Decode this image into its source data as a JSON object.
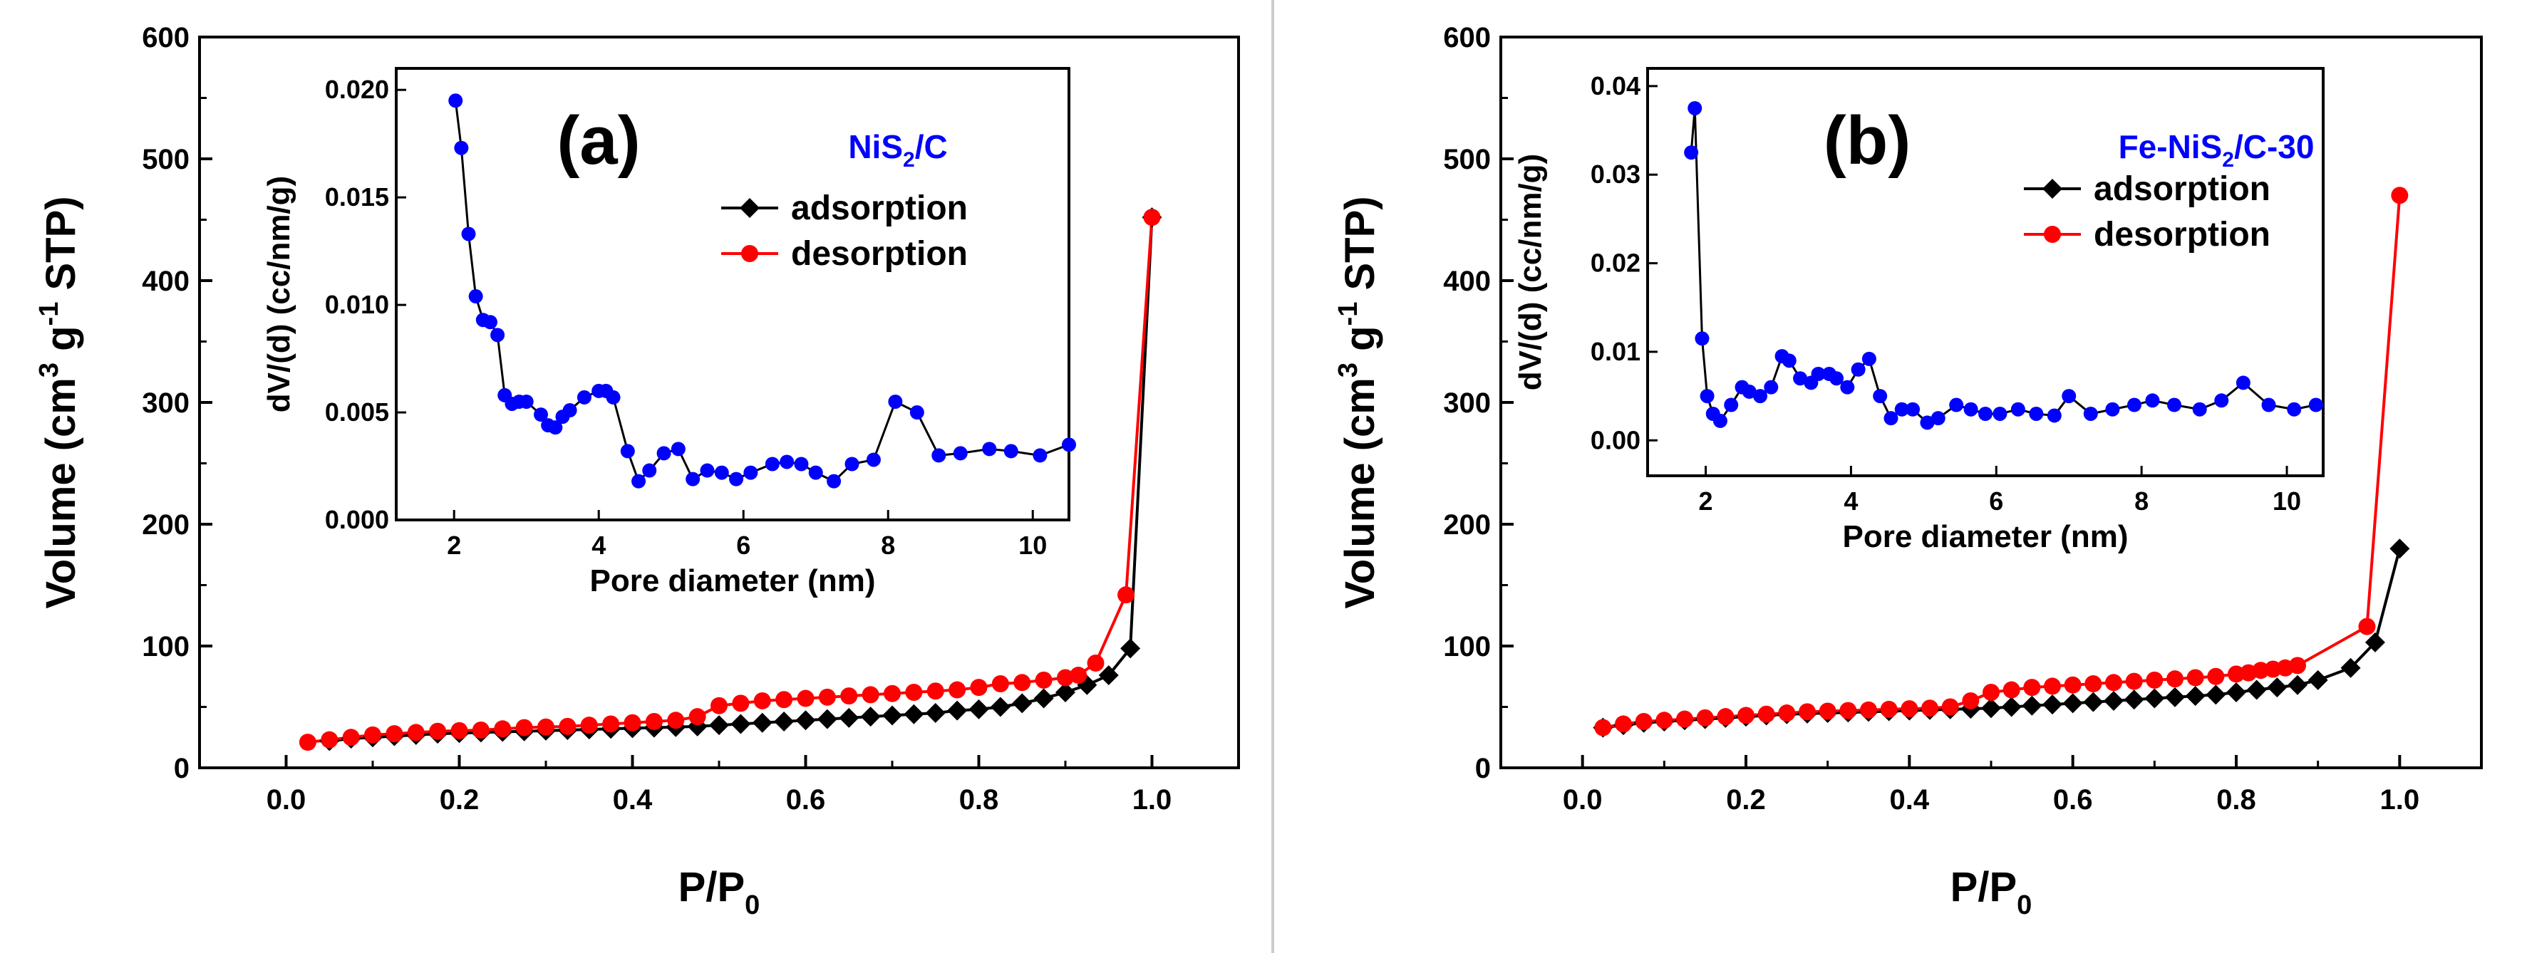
{
  "chart_data": [
    {
      "type": "line",
      "panel_label": "(a)",
      "xlabel": "P/P",
      "xlabel_sub": "0",
      "ylabel": {
        "pre": "Volume (cm",
        "sup1": "3",
        "mid": " g",
        "sup2": "-1",
        "post": " STP)"
      },
      "xlim": [
        -0.1,
        1.1
      ],
      "ylim": [
        0,
        600
      ],
      "xticks": [
        "0.0",
        "0.2",
        "0.4",
        "0.6",
        "0.8",
        "1.0"
      ],
      "xtick_values": [
        0,
        0.2,
        0.4,
        0.6,
        0.8,
        1.0
      ],
      "yticks": [
        "0",
        "100",
        "200",
        "300",
        "400",
        "500",
        "600"
      ],
      "ytick_values": [
        0,
        100,
        200,
        300,
        400,
        500,
        600
      ],
      "legend_location": "upper-right of inset",
      "series": [
        {
          "name": "adsorption",
          "color": "#000000",
          "marker": "diamond",
          "x": [
            0.05,
            0.075,
            0.1,
            0.125,
            0.15,
            0.175,
            0.2,
            0.225,
            0.25,
            0.275,
            0.3,
            0.325,
            0.35,
            0.375,
            0.4,
            0.425,
            0.45,
            0.475,
            0.5,
            0.525,
            0.55,
            0.575,
            0.6,
            0.625,
            0.65,
            0.675,
            0.7,
            0.725,
            0.75,
            0.775,
            0.8,
            0.825,
            0.85,
            0.875,
            0.9,
            0.925,
            0.95,
            0.975,
            1.0
          ],
          "y": [
            22,
            24,
            25,
            26,
            27,
            28,
            28.5,
            29,
            29.5,
            30,
            30.5,
            31,
            31.5,
            32,
            32.5,
            33,
            33.5,
            34,
            35,
            36,
            37,
            38,
            39,
            40,
            41,
            42,
            43,
            44,
            45,
            47,
            48,
            50,
            53,
            57,
            62,
            68,
            76,
            98,
            452
          ]
        },
        {
          "name": "desorption",
          "color": "#ff0000",
          "marker": "circle",
          "x": [
            0.025,
            0.05,
            0.075,
            0.1,
            0.125,
            0.15,
            0.175,
            0.2,
            0.225,
            0.25,
            0.275,
            0.3,
            0.325,
            0.35,
            0.375,
            0.4,
            0.425,
            0.45,
            0.475,
            0.5,
            0.525,
            0.55,
            0.575,
            0.6,
            0.625,
            0.65,
            0.675,
            0.7,
            0.725,
            0.75,
            0.775,
            0.8,
            0.825,
            0.85,
            0.875,
            0.9,
            0.915,
            0.935,
            0.97,
            1.0
          ],
          "y": [
            21,
            23,
            25,
            27,
            28,
            29,
            30,
            30.5,
            31,
            32,
            33,
            33.5,
            34,
            35,
            36,
            37,
            38,
            39,
            42,
            51,
            53,
            55,
            56,
            57,
            58,
            59,
            60,
            61,
            62,
            63,
            64,
            66,
            69,
            70,
            72,
            74,
            76,
            86,
            142,
            452
          ]
        }
      ],
      "inset": {
        "type": "line",
        "title": "NiS",
        "title_sub": "2",
        "title_post": "/C",
        "title_color": "#0000ff",
        "xlabel": "Pore diameter (nm)",
        "ylabel": "dV/(d) (cc/nm/g)",
        "xlim": [
          1.2,
          10.5
        ],
        "ylim": [
          0,
          0.021
        ],
        "xticks": [
          "2",
          "4",
          "6",
          "8",
          "10"
        ],
        "xtick_values": [
          2,
          4,
          6,
          8,
          10
        ],
        "yticks": [
          "0.000",
          "0.005",
          "0.010",
          "0.015",
          "0.020"
        ],
        "ytick_values": [
          0,
          0.005,
          0.01,
          0.015,
          0.02
        ],
        "series": [
          {
            "name": "pore size distribution",
            "color": "#0000ff",
            "x": [
              2.02,
              2.1,
              2.2,
              2.3,
              2.4,
              2.5,
              2.6,
              2.7,
              2.8,
              2.9,
              3.0,
              3.2,
              3.3,
              3.4,
              3.5,
              3.6,
              3.8,
              4.0,
              4.1,
              4.2,
              4.4,
              4.55,
              4.7,
              4.9,
              5.1,
              5.3,
              5.5,
              5.7,
              5.9,
              6.1,
              6.4,
              6.6,
              6.8,
              7.0,
              7.25,
              7.5,
              7.8,
              8.1,
              8.4,
              8.7,
              9.0,
              9.4,
              9.7,
              10.1,
              10.5
            ],
            "y": [
              0.0195,
              0.0173,
              0.0133,
              0.0104,
              0.0093,
              0.0092,
              0.0086,
              0.0058,
              0.0054,
              0.0055,
              0.0055,
              0.0049,
              0.0044,
              0.0043,
              0.0048,
              0.0051,
              0.0057,
              0.006,
              0.006,
              0.0057,
              0.0032,
              0.0018,
              0.0023,
              0.0031,
              0.0033,
              0.0019,
              0.0023,
              0.0022,
              0.0019,
              0.0022,
              0.0026,
              0.0027,
              0.0026,
              0.0022,
              0.0018,
              0.0026,
              0.0028,
              0.0055,
              0.005,
              0.003,
              0.0031,
              0.0033,
              0.0032,
              0.003,
              0.0035
            ]
          }
        ]
      }
    },
    {
      "type": "line",
      "panel_label": "(b)",
      "xlabel": "P/P",
      "xlabel_sub": "0",
      "ylabel": {
        "pre": "Volume (cm",
        "sup1": "3",
        "mid": " g",
        "sup2": "-1",
        "post": " STP)"
      },
      "xlim": [
        -0.1,
        1.1
      ],
      "ylim": [
        0,
        600
      ],
      "xticks": [
        "0.0",
        "0.2",
        "0.4",
        "0.6",
        "0.8",
        "1.0"
      ],
      "xtick_values": [
        0,
        0.2,
        0.4,
        0.6,
        0.8,
        1.0
      ],
      "yticks": [
        "0",
        "100",
        "200",
        "300",
        "400",
        "500",
        "600"
      ],
      "ytick_values": [
        0,
        100,
        200,
        300,
        400,
        500,
        600
      ],
      "legend_location": "upper-right of inset",
      "series": [
        {
          "name": "adsorption",
          "color": "#000000",
          "marker": "diamond",
          "x": [
            0.025,
            0.05,
            0.075,
            0.1,
            0.125,
            0.15,
            0.175,
            0.2,
            0.225,
            0.25,
            0.275,
            0.3,
            0.325,
            0.35,
            0.375,
            0.4,
            0.425,
            0.45,
            0.475,
            0.5,
            0.525,
            0.55,
            0.575,
            0.6,
            0.625,
            0.65,
            0.675,
            0.7,
            0.725,
            0.75,
            0.775,
            0.8,
            0.825,
            0.85,
            0.875,
            0.9,
            0.94,
            0.97,
            1.0
          ],
          "y": [
            33,
            35,
            37,
            38,
            39,
            40,
            41,
            42,
            43,
            44,
            44.5,
            45,
            45.5,
            46,
            46.5,
            47,
            47.5,
            48,
            48.5,
            49,
            50,
            51,
            52,
            53,
            54,
            55,
            56,
            57,
            58,
            59,
            60,
            62,
            64,
            66,
            68,
            72,
            82,
            103,
            180
          ]
        },
        {
          "name": "desorption",
          "color": "#ff0000",
          "marker": "circle",
          "x": [
            0.025,
            0.05,
            0.075,
            0.1,
            0.125,
            0.15,
            0.175,
            0.2,
            0.225,
            0.25,
            0.275,
            0.3,
            0.325,
            0.35,
            0.375,
            0.4,
            0.425,
            0.45,
            0.475,
            0.5,
            0.525,
            0.55,
            0.575,
            0.6,
            0.625,
            0.65,
            0.675,
            0.7,
            0.725,
            0.75,
            0.775,
            0.8,
            0.815,
            0.83,
            0.845,
            0.86,
            0.875,
            0.96,
            1.0
          ],
          "y": [
            33,
            36,
            38,
            39,
            40,
            41,
            42,
            43,
            44,
            45,
            46,
            46.5,
            47,
            47.5,
            48,
            48.5,
            49,
            50,
            55,
            62,
            64,
            66,
            67,
            68,
            69,
            70,
            71,
            72,
            73,
            74,
            75,
            77,
            78,
            80,
            81,
            82,
            84,
            116,
            470
          ]
        }
      ],
      "inset": {
        "type": "line",
        "title": "Fe-NiS",
        "title_sub": "2",
        "title_post": "/C-30",
        "title_color": "#0000ff",
        "xlabel": "Pore diameter (nm)",
        "ylabel": "dV/(d) (cc/nm/g)",
        "xlim": [
          1.2,
          10.5
        ],
        "ylim": [
          -0.004,
          0.042
        ],
        "xticks": [
          "2",
          "4",
          "6",
          "8",
          "10"
        ],
        "xtick_values": [
          2,
          4,
          6,
          8,
          10
        ],
        "yticks": [
          "0.00",
          "0.01",
          "0.02",
          "0.03",
          "0.04"
        ],
        "ytick_values": [
          0,
          0.01,
          0.02,
          0.03,
          0.04
        ],
        "series": [
          {
            "name": "pore size distribution",
            "color": "#0000ff",
            "x": [
              1.8,
              1.85,
              1.95,
              2.02,
              2.1,
              2.2,
              2.35,
              2.5,
              2.6,
              2.75,
              2.9,
              3.05,
              3.15,
              3.3,
              3.45,
              3.55,
              3.7,
              3.8,
              3.95,
              4.1,
              4.25,
              4.4,
              4.55,
              4.7,
              4.85,
              5.05,
              5.2,
              5.45,
              5.65,
              5.85,
              6.05,
              6.3,
              6.55,
              6.8,
              7.0,
              7.3,
              7.6,
              7.9,
              8.15,
              8.45,
              8.8,
              9.1,
              9.4,
              9.75,
              10.1,
              10.4
            ],
            "y": [
              0.0325,
              0.0375,
              0.0115,
              0.005,
              0.003,
              0.0022,
              0.004,
              0.006,
              0.0055,
              0.005,
              0.006,
              0.0095,
              0.009,
              0.007,
              0.0065,
              0.0075,
              0.0075,
              0.007,
              0.006,
              0.008,
              0.0092,
              0.005,
              0.0025,
              0.0035,
              0.0035,
              0.002,
              0.0025,
              0.004,
              0.0035,
              0.003,
              0.003,
              0.0035,
              0.003,
              0.0028,
              0.005,
              0.003,
              0.0035,
              0.004,
              0.0045,
              0.004,
              0.0035,
              0.0045,
              0.0065,
              0.004,
              0.0035,
              0.004
            ]
          }
        ]
      }
    }
  ]
}
